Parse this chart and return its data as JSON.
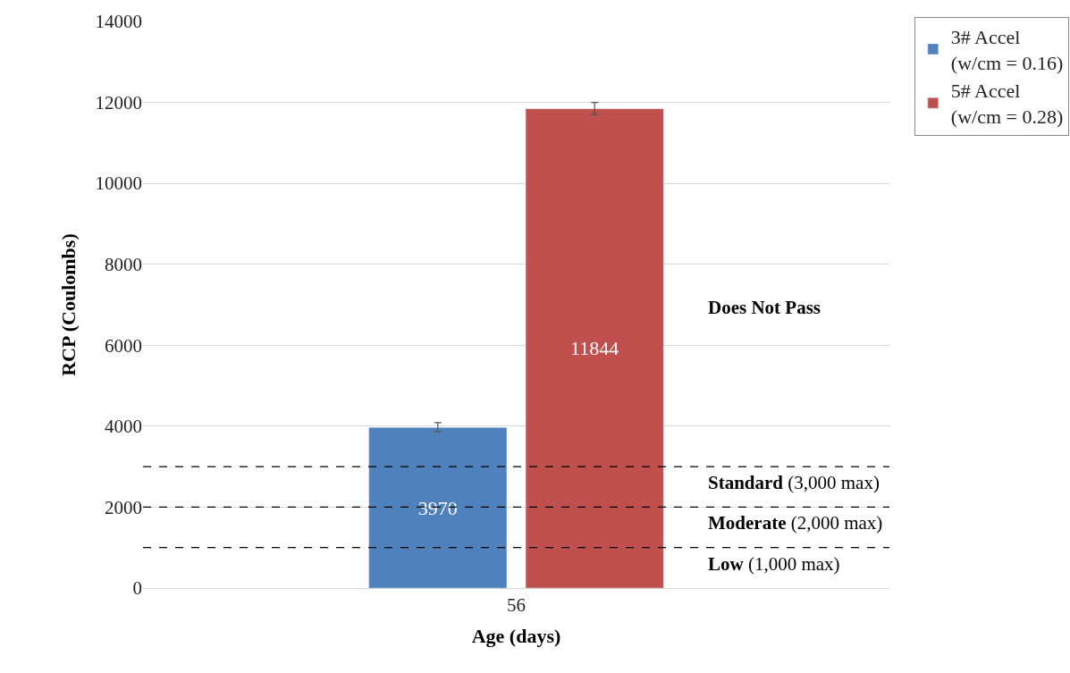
{
  "chart_data": {
    "type": "bar",
    "xlabel": "Age (days)",
    "ylabel": "RCP (Coulombs)",
    "categories": [
      "56"
    ],
    "series": [
      {
        "name": "3# Accel (w/cm = 0.16)",
        "color": "#4f81bd",
        "values": [
          3970
        ],
        "errors": [
          [
            3860,
            4090
          ]
        ]
      },
      {
        "name": "5# Accel (w/cm = 0.28)",
        "color": "#c0504d",
        "values": [
          11844
        ],
        "errors": [
          [
            11700,
            12000
          ]
        ]
      }
    ],
    "ylim": [
      0,
      14000
    ],
    "yticks": [
      0,
      2000,
      4000,
      6000,
      8000,
      10000,
      12000,
      14000
    ],
    "grid": "y",
    "legend": "top right",
    "data_labels": true,
    "ref_lines": [
      {
        "axis": "y",
        "value": 3000,
        "label": "Standard (3,000 max)",
        "line_style": "dashed",
        "color": "#000000"
      },
      {
        "axis": "y",
        "value": 2000,
        "label": "Moderate (2,000 max)",
        "line_style": "dashed",
        "color": "#000000"
      },
      {
        "axis": "y",
        "value": 1000,
        "label": "Low (1,000 max)",
        "line_style": "dashed",
        "color": "#000000"
      }
    ],
    "annotations": [
      "Does Not Pass"
    ]
  }
}
